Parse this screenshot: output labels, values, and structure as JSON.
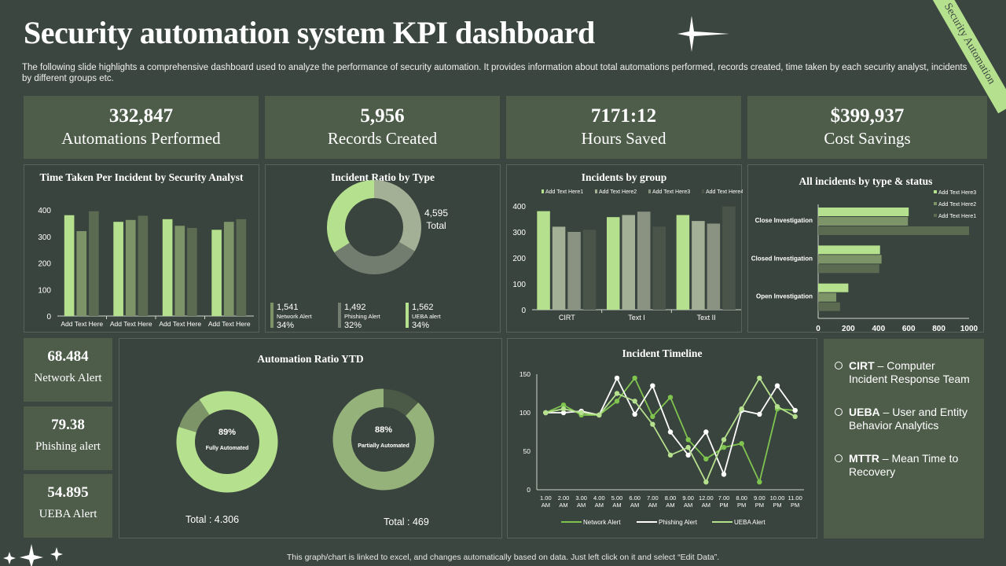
{
  "header": {
    "title": "Security automation system KPI dashboard",
    "description": "The following slide highlights a comprehensive dashboard used to analyze the performance of security automation. It provides information about total automations performed, records created, time taken by each security analyst, incidents by different groups etc.",
    "ribbon": "Security Automation"
  },
  "kpis": [
    {
      "value": "332,847",
      "label": "Automations Performed"
    },
    {
      "value": "5,956",
      "label": "Records Created"
    },
    {
      "value": "7171:12",
      "label": "Hours Saved"
    },
    {
      "value": "$399,937",
      "label": "Cost Savings"
    }
  ],
  "side_kpis": [
    {
      "value": "68.484",
      "label": "Network  Alert"
    },
    {
      "value": "79.38",
      "label": "Phishing alert"
    },
    {
      "value": "54.895",
      "label": "UEBA Alert"
    }
  ],
  "glossary": [
    {
      "abbr": "CIRT",
      "text": " – Computer Incident Response Team"
    },
    {
      "abbr": "UEBA",
      "text": "  – User and Entity Behavior Analytics"
    },
    {
      "abbr": "MTTR",
      "text": " – Mean Time to Recovery"
    }
  ],
  "footer": "This graph/chart is linked to excel, and changes automatically based on data. Just left click on it and select “Edit Data”.",
  "colors": {
    "light": "#b5e08e",
    "mid": "#7d9469",
    "dark": "#5a6b52",
    "sage": "#a3b095",
    "grey": "#737d6f",
    "bg": "#3c4640",
    "card": "#4e5c4a"
  },
  "chart_data": [
    {
      "id": "time",
      "type": "bar",
      "title": "Time Taken Per Incident by Security Analyst",
      "categories": [
        "Add Text Here",
        "Add Text Here",
        "Add Text Here",
        "Add Text Here"
      ],
      "ylim": [
        0,
        400
      ],
      "yticks": [
        0,
        100,
        200,
        300,
        400
      ],
      "series": [
        {
          "values": [
            380,
            355,
            365,
            325
          ]
        },
        {
          "values": [
            320,
            362,
            340,
            355
          ]
        },
        {
          "values": [
            395,
            378,
            332,
            365
          ]
        }
      ]
    },
    {
      "id": "ratio",
      "type": "pie",
      "title": "Incident Ratio by Type",
      "total": "4,595",
      "total_label": "Total",
      "slices": [
        {
          "name": "Network Alert",
          "value": 1541,
          "value_label": "1,541",
          "pct": "34%"
        },
        {
          "name": "Phishing Alert",
          "value": 1492,
          "value_label": "1,492",
          "pct": "32%"
        },
        {
          "name": "UEBA alert",
          "value": 1562,
          "value_label": "1,562",
          "pct": "34%"
        }
      ]
    },
    {
      "id": "group",
      "type": "bar",
      "title": "Incidents by group",
      "categories": [
        "CIRT",
        "Text I",
        "Text II"
      ],
      "ylim": [
        0,
        400
      ],
      "yticks": [
        0,
        100,
        200,
        300,
        400
      ],
      "legend": "top",
      "series": [
        {
          "name": "Add Text Here1",
          "values": [
            380,
            357,
            365
          ]
        },
        {
          "name": "Add Text Here2",
          "values": [
            320,
            365,
            342
          ]
        },
        {
          "name": "Add Text Here3",
          "values": [
            300,
            378,
            332
          ]
        },
        {
          "name": "Add Text Here4",
          "values": [
            308,
            320,
            398
          ]
        }
      ]
    },
    {
      "id": "status",
      "type": "bar",
      "orientation": "horizontal",
      "title": "All incidents by type & status",
      "categories": [
        "Close Investigation",
        "Closed Investigation",
        "Open Investigation"
      ],
      "xlim": [
        0,
        1000
      ],
      "xticks": [
        0,
        200,
        400,
        600,
        800,
        1000
      ],
      "legend": "top-right",
      "series": [
        {
          "name": "Add Text Here3",
          "values": [
            600,
            410,
            200
          ]
        },
        {
          "name": "Add Text Here2",
          "values": [
            595,
            420,
            120
          ]
        },
        {
          "name": "Add Text Here1",
          "values": [
            1000,
            405,
            145
          ]
        }
      ]
    },
    {
      "id": "ytd",
      "type": "pie",
      "title": "Automation Ratio YTD",
      "donuts": [
        {
          "pct": 89,
          "pct_label": "89%",
          "label": "Fully Automated",
          "total": "Total  : 4.306"
        },
        {
          "pct": 88,
          "pct_label": "88%",
          "label": "Partially  Automated",
          "total": "Total  : 469"
        }
      ]
    },
    {
      "id": "timeline",
      "type": "line",
      "title": "Incident Timeline",
      "categories": [
        "1.00 AM",
        "2.00 AM",
        "3.00 AM",
        "4.00 AM",
        "5.00 AM",
        "6.00 AM",
        "7.00 AM",
        "8.00 AM",
        "9.00 AM",
        "12.00 AM",
        "7.00 PM",
        "8.00 PM",
        "9.00 PM",
        "10.00 PM",
        "11.00 PM"
      ],
      "ylim": [
        0,
        150
      ],
      "yticks": [
        0,
        50,
        100,
        150
      ],
      "legend": "bottom",
      "series": [
        {
          "name": "Network Alert",
          "values": [
            100,
            110,
            97,
            97,
            115,
            145,
            95,
            120,
            65,
            40,
            55,
            60,
            10,
            105,
            103
          ]
        },
        {
          "name": "Phishing Alert",
          "values": [
            100,
            100,
            102,
            97,
            145,
            98,
            135,
            75,
            45,
            75,
            20,
            103,
            98,
            135,
            103
          ]
        },
        {
          "name": "UEBA Alert",
          "values": [
            100,
            105,
            100,
            97,
            125,
            115,
            85,
            45,
            55,
            10,
            65,
            105,
            145,
            108,
            95
          ]
        }
      ]
    }
  ]
}
